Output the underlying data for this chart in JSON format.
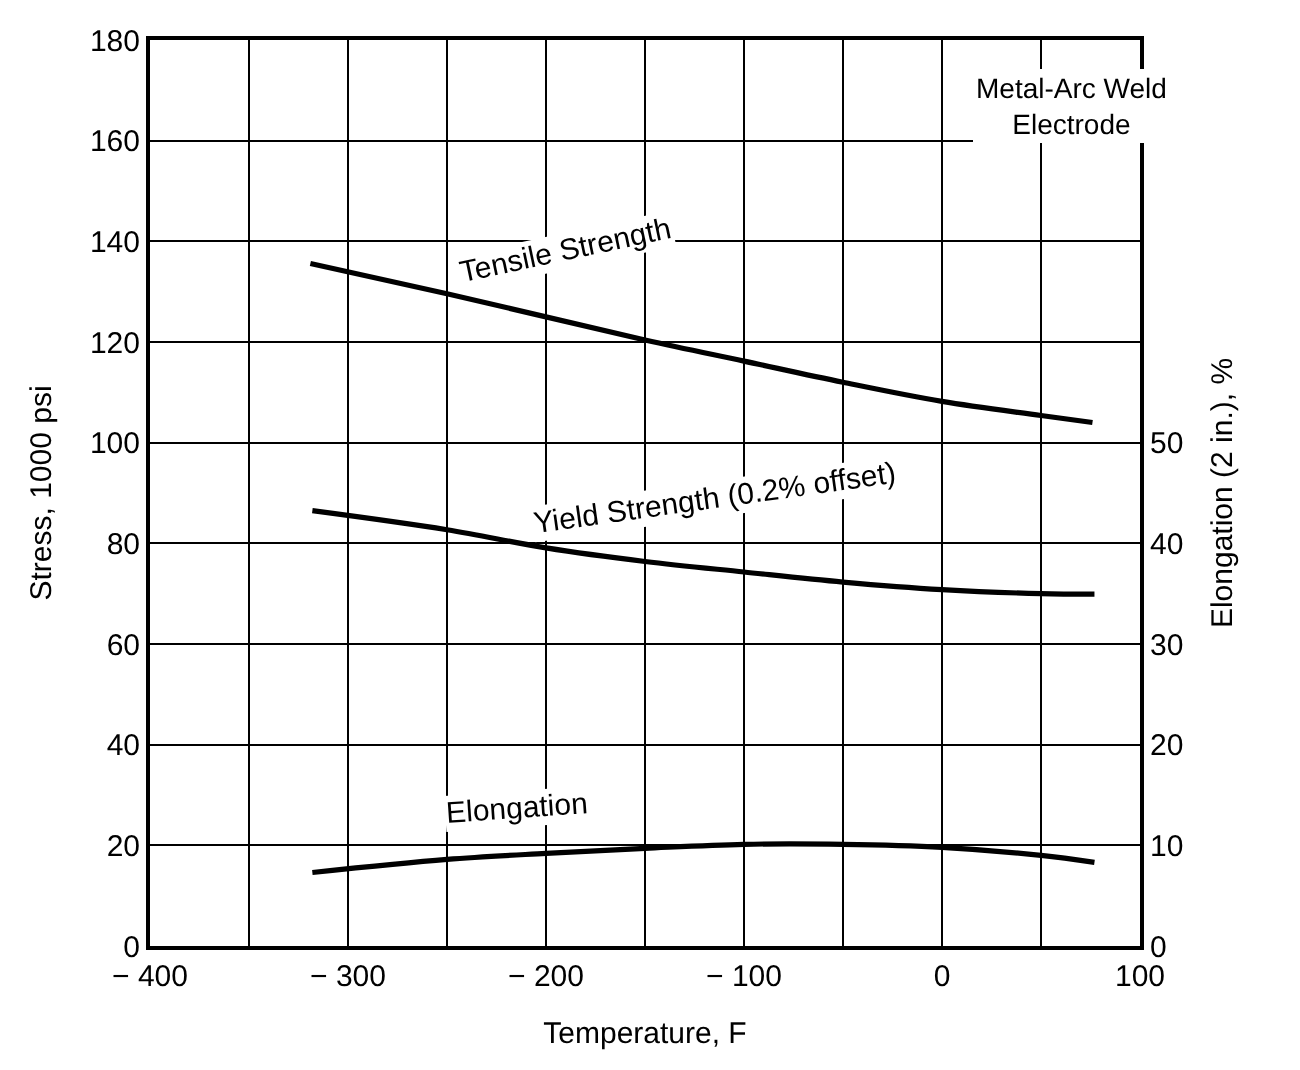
{
  "chart_data": {
    "type": "line",
    "xlabel": "Temperature, F",
    "ylabel": "Stress, 1000 psi",
    "y2label": "Elongation (2 in.), %",
    "xlim": [
      -400,
      100
    ],
    "xticks": [
      {
        "value": -400,
        "label": "− 400"
      },
      {
        "value": -350,
        "label": null
      },
      {
        "value": -300,
        "label": "− 300"
      },
      {
        "value": -250,
        "label": null
      },
      {
        "value": -200,
        "label": "− 200"
      },
      {
        "value": -150,
        "label": null
      },
      {
        "value": -100,
        "label": "− 100"
      },
      {
        "value": -50,
        "label": null
      },
      0,
      {
        "value": 50,
        "label": null
      },
      100
    ],
    "ylim": [
      0,
      180
    ],
    "yticks": [
      0,
      20,
      40,
      60,
      80,
      100,
      120,
      140,
      160,
      180
    ],
    "y2lim": [
      0,
      90
    ],
    "y2ticks": [
      0,
      10,
      20,
      30,
      40,
      50
    ],
    "grid": true,
    "legend": false,
    "marker": "none",
    "line_style": "solid",
    "series": [
      {
        "name": "Tensile Strength",
        "color": "#000000",
        "x": [
          -319,
          -250,
          -150,
          -100,
          -50,
          0,
          50,
          76
        ],
        "values": [
          135.6,
          129.6,
          120.4,
          116.2,
          112,
          108.2,
          105.4,
          104
        ]
      },
      {
        "name": "Yield Strength (0.2% offset)",
        "color": "#000000",
        "x": [
          -318,
          -250,
          -200,
          -150,
          -100,
          -50,
          0,
          50,
          77
        ],
        "values": [
          86.5,
          82.7,
          79.1,
          76.4,
          74.3,
          72.3,
          70.8,
          70.0,
          69.9
        ]
      },
      {
        "name": "Elongation",
        "color": "#000000",
        "axis": "y2",
        "x": [
          -318,
          -250,
          -200,
          -150,
          -100,
          -50,
          0,
          50,
          77
        ],
        "values": [
          7.3,
          8.6,
          9.2,
          9.7,
          10.1,
          10.1,
          9.8,
          9.0,
          8.3
        ]
      }
    ],
    "annotations": [
      "Metal-Arc Weld\nElectrode"
    ]
  }
}
